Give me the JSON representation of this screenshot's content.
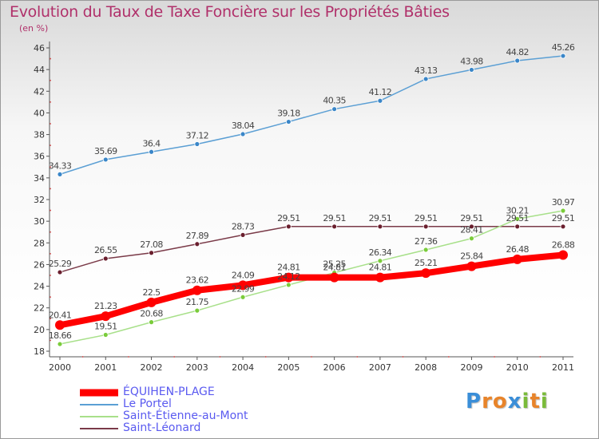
{
  "title": "Evolution du Taux de Taxe Foncière sur les Propriétés Bâties",
  "subtitle": "(en %)",
  "logo": {
    "text": "Proxiti",
    "letters": [
      {
        "ch": "P",
        "color": "#3a8ed8"
      },
      {
        "ch": "r",
        "color": "#e8842a"
      },
      {
        "ch": "o",
        "color": "#e8842a"
      },
      {
        "ch": "x",
        "color": "#3a8ed8"
      },
      {
        "ch": "i",
        "color": "#7abb3a"
      },
      {
        "ch": "t",
        "color": "#e8842a"
      },
      {
        "ch": "i",
        "color": "#7abb3a"
      }
    ]
  },
  "chart_data": {
    "type": "line",
    "x": [
      2000,
      2001,
      2002,
      2003,
      2004,
      2005,
      2006,
      2007,
      2008,
      2009,
      2010,
      2011
    ],
    "ylim": [
      18,
      46
    ],
    "yticks": [
      18,
      20,
      22,
      24,
      26,
      28,
      30,
      32,
      34,
      36,
      38,
      40,
      42,
      44,
      46
    ],
    "grid": false,
    "legend_position": "bottom-left",
    "series": [
      {
        "name": "Le Portel",
        "color": "#5b9fd4",
        "marker_color": "#3a86c8",
        "values": [
          34.33,
          35.69,
          36.4,
          37.12,
          38.04,
          39.18,
          40.35,
          41.12,
          43.13,
          43.98,
          44.82,
          45.26
        ],
        "labels": [
          "34.33",
          "35.69",
          "36.4",
          "37.12",
          "38.04",
          "39.18",
          "40.35",
          "41.12",
          "43.13",
          "43.98",
          "44.82",
          "45.26"
        ]
      },
      {
        "name": "Saint-Léonard",
        "color": "#7a3a48",
        "marker_color": "#6a1f2e",
        "values": [
          25.29,
          26.55,
          27.08,
          27.89,
          28.73,
          29.51,
          29.51,
          29.51,
          29.51,
          29.51,
          29.51,
          29.51
        ],
        "labels": [
          "25.29",
          "26.55",
          "27.08",
          "27.89",
          "28.73",
          "29.51",
          "29.51",
          "29.51",
          "29.51",
          "29.51",
          "29.51",
          "29.51"
        ]
      },
      {
        "name": "Saint-Étienne-au-Mont",
        "color": "#a8e08a",
        "marker_color": "#7acc3a",
        "values": [
          18.66,
          19.51,
          20.68,
          21.75,
          22.99,
          24.12,
          25.25,
          26.34,
          27.36,
          28.41,
          30.21,
          30.97
        ],
        "labels": [
          "18.66",
          "19.51",
          "20.68",
          "21.75",
          "22.99",
          "24.12",
          "25.25",
          "26.34",
          "27.36",
          "28.41",
          "30.21",
          "30.97"
        ]
      },
      {
        "name": "ÉQUIHEN-PLAGE",
        "color": "#ff0000",
        "marker_color": "#ff0000",
        "values": [
          20.41,
          21.23,
          22.5,
          23.62,
          24.09,
          24.81,
          24.81,
          24.81,
          25.21,
          25.84,
          26.48,
          26.88
        ],
        "labels": [
          "20.41",
          "21.23",
          "22.5",
          "23.62",
          "24.09",
          "24.81",
          "24.81",
          "24.81",
          "25.21",
          "25.84",
          "26.48",
          "26.88"
        ]
      }
    ],
    "legend_order": [
      "ÉQUIHEN-PLAGE",
      "Le Portel",
      "Saint-Étienne-au-Mont",
      "Saint-Léonard"
    ]
  }
}
